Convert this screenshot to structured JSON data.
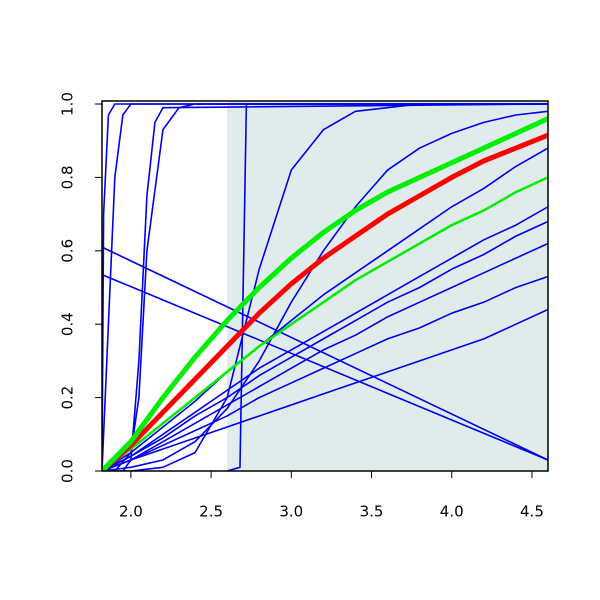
{
  "chart_data": {
    "type": "line",
    "xlim": [
      1.82,
      4.6
    ],
    "ylim": [
      0,
      1
    ],
    "xticks": [
      {
        "value": 2,
        "label": "2.0"
      },
      {
        "value": 2.5,
        "label": "2.5"
      },
      {
        "value": 3,
        "label": "3.0"
      },
      {
        "value": 3.5,
        "label": "3.5"
      },
      {
        "value": 4,
        "label": "4.0"
      },
      {
        "value": 4.5,
        "label": "4.5"
      }
    ],
    "yticks": [
      {
        "value": 0,
        "label": "0.0"
      },
      {
        "value": 0.2,
        "label": "0.2"
      },
      {
        "value": 0.4,
        "label": "0.4"
      },
      {
        "value": 0.6,
        "label": "0.6"
      },
      {
        "value": 0.8,
        "label": "0.8"
      },
      {
        "value": 1,
        "label": "1.0"
      }
    ],
    "shade": {
      "xlim": [
        2.6,
        4.6
      ],
      "color": "#e0ecec"
    },
    "x": [
      1.82,
      2.0,
      2.2,
      2.4,
      2.6,
      2.8,
      3.0,
      3.2,
      3.4,
      3.6,
      3.8,
      4.0,
      4.2,
      4.4,
      4.6
    ],
    "series": [
      {
        "color": "#0000ee",
        "width": 1.6,
        "values": [
          0,
          0.05,
          0.12,
          0.19,
          0.27,
          0.34,
          0.41,
          0.48,
          0.54,
          0.6,
          0.66,
          0.72,
          0.77,
          0.83,
          0.88
        ]
      },
      {
        "color": "#0000ee",
        "width": 1.6,
        "values": [
          0,
          0.04,
          0.1,
          0.16,
          0.22,
          0.28,
          0.33,
          0.38,
          0.43,
          0.48,
          0.53,
          0.58,
          0.63,
          0.67,
          0.72
        ]
      },
      {
        "color": "#0000ee",
        "width": 1.6,
        "values": [
          0,
          0.04,
          0.09,
          0.15,
          0.2,
          0.26,
          0.31,
          0.36,
          0.41,
          0.46,
          0.5,
          0.55,
          0.59,
          0.64,
          0.68
        ]
      },
      {
        "color": "#0000ee",
        "width": 1.6,
        "values": [
          0,
          0.03,
          0.08,
          0.13,
          0.18,
          0.23,
          0.28,
          0.33,
          0.37,
          0.42,
          0.46,
          0.5,
          0.54,
          0.58,
          0.62
        ]
      },
      {
        "color": "#0000ee",
        "width": 1.6,
        "values": [
          0,
          0.03,
          0.07,
          0.11,
          0.15,
          0.2,
          0.24,
          0.28,
          0.32,
          0.36,
          0.39,
          0.43,
          0.46,
          0.5,
          0.53
        ]
      },
      {
        "color": "#0000ee",
        "width": 1.6,
        "values": [
          0,
          0.03,
          0.06,
          0.09,
          0.12,
          0.15,
          0.18,
          0.21,
          0.24,
          0.27,
          0.3,
          0.33,
          0.36,
          0.4,
          0.44
        ]
      },
      {
        "color": "#0000ee",
        "width": 1.6,
        "values": [
          0,
          0.01,
          0.03,
          0.08,
          0.17,
          0.3,
          0.46,
          0.6,
          0.72,
          0.82,
          0.88,
          0.92,
          0.95,
          0.97,
          0.98
        ]
      },
      {
        "color": "#0000ee",
        "width": 1.6,
        "values": [
          0,
          0,
          0.01,
          0.05,
          0.2,
          0.55,
          0.82,
          0.93,
          0.98,
          0.99,
          1,
          1,
          1,
          1,
          1
        ]
      },
      {
        "color": "#0000ee",
        "width": 1.6,
        "x": [
          1.82,
          4.6
        ],
        "values": [
          0.61,
          0.03
        ]
      },
      {
        "color": "#0000ee",
        "width": 1.6,
        "x": [
          1.82,
          4.6
        ],
        "values": [
          0.535,
          0.03
        ]
      },
      {
        "color": "#0000ee",
        "width": 1.6,
        "x": [
          1.82,
          1.83,
          1.86,
          1.9,
          4.6
        ],
        "values": [
          0,
          0.7,
          0.97,
          1,
          1
        ]
      },
      {
        "color": "#0000ee",
        "width": 1.6,
        "x": [
          1.82,
          1.85,
          1.9,
          1.95,
          2.0,
          4.6
        ],
        "values": [
          0,
          0.3,
          0.8,
          0.97,
          1,
          1
        ]
      },
      {
        "color": "#0000ee",
        "width": 1.6,
        "x": [
          1.95,
          2.0,
          2.05,
          2.1,
          2.15,
          2.2,
          4.6
        ],
        "values": [
          0,
          0.03,
          0.3,
          0.75,
          0.95,
          0.99,
          1
        ]
      },
      {
        "color": "#0000ee",
        "width": 1.6,
        "x": [
          1.9,
          2.0,
          2.05,
          2.1,
          2.2,
          2.3,
          2.4,
          4.6
        ],
        "values": [
          0,
          0.05,
          0.2,
          0.6,
          0.93,
          0.99,
          1,
          1
        ]
      },
      {
        "color": "#0000ee",
        "width": 1.6,
        "x": [
          2.6,
          2.68,
          2.7,
          2.72,
          4.6
        ],
        "values": [
          0,
          0.01,
          0.5,
          1,
          1
        ]
      },
      {
        "color": "#00ee00",
        "width": 2.5,
        "values": [
          0,
          0.06,
          0.13,
          0.2,
          0.27,
          0.34,
          0.4,
          0.46,
          0.52,
          0.57,
          0.62,
          0.67,
          0.71,
          0.76,
          0.8
        ]
      },
      {
        "color": "#ff0000",
        "width": 5,
        "values": [
          0,
          0.07,
          0.16,
          0.25,
          0.34,
          0.43,
          0.51,
          0.58,
          0.64,
          0.7,
          0.75,
          0.8,
          0.845,
          0.88,
          0.915
        ]
      },
      {
        "color": "#00ee00",
        "width": 5,
        "values": [
          0,
          0.08,
          0.2,
          0.31,
          0.41,
          0.5,
          0.58,
          0.65,
          0.71,
          0.76,
          0.8,
          0.84,
          0.88,
          0.92,
          0.96
        ]
      }
    ]
  }
}
